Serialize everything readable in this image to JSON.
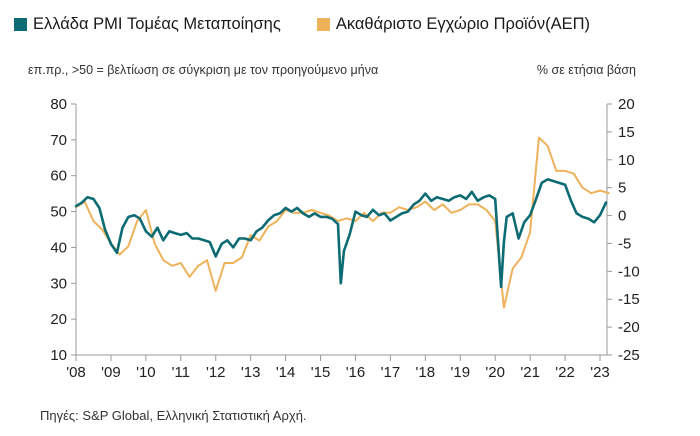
{
  "legend": {
    "pmi_label": "Ελλάδα PMI Τομέας Μεταποίησης",
    "gdp_label": "Ακαθάριστο Εγχώριο Προϊόν(ΑΕΠ)"
  },
  "notes": {
    "left_axis_note": "επ.πρ., >50 = βελτίωση σε σύγκριση με τον προηγούμενο μήνα",
    "right_axis_note": "% σε ετήσια βάση"
  },
  "source": "Πηγές: S&P Global, Ελληνική Στατιστική Αρχή.",
  "chart_data": {
    "type": "line",
    "colors": {
      "pmi": "#0d6b73",
      "gdp": "#eeb25b",
      "axis": "#9a9a9a"
    },
    "grid": false,
    "legend_position": "top",
    "x_ticks": [
      "'08",
      "'09",
      "'10",
      "'11",
      "'12",
      "'13",
      "'14",
      "'15",
      "'16",
      "'17",
      "'18",
      "'19",
      "'20",
      "'21",
      "'22",
      "'23"
    ],
    "y_left": {
      "range": [
        10,
        80
      ],
      "ticks": [
        "80",
        "70",
        "60",
        "50",
        "40",
        "30",
        "20",
        "10"
      ]
    },
    "y_right": {
      "range": [
        -25,
        20
      ],
      "ticks": [
        "20",
        "15",
        "10",
        "5",
        "0",
        "-5",
        "-10",
        "-15",
        "-20",
        "-25"
      ]
    },
    "series": [
      {
        "name": "Ελλάδα PMI Τομέας Μεταποίησης",
        "axis": "left",
        "x": [
          2008.0,
          2008.17,
          2008.33,
          2008.5,
          2008.67,
          2008.83,
          2009.0,
          2009.17,
          2009.33,
          2009.5,
          2009.67,
          2009.83,
          2010.0,
          2010.17,
          2010.33,
          2010.5,
          2010.67,
          2010.83,
          2011.0,
          2011.17,
          2011.33,
          2011.5,
          2011.67,
          2011.83,
          2012.0,
          2012.17,
          2012.33,
          2012.5,
          2012.67,
          2012.83,
          2013.0,
          2013.17,
          2013.33,
          2013.5,
          2013.67,
          2013.83,
          2014.0,
          2014.17,
          2014.33,
          2014.5,
          2014.67,
          2014.83,
          2015.0,
          2015.17,
          2015.33,
          2015.5,
          2015.58,
          2015.67,
          2015.83,
          2016.0,
          2016.17,
          2016.33,
          2016.5,
          2016.67,
          2016.83,
          2017.0,
          2017.17,
          2017.33,
          2017.5,
          2017.67,
          2017.83,
          2018.0,
          2018.17,
          2018.33,
          2018.5,
          2018.67,
          2018.83,
          2019.0,
          2019.17,
          2019.33,
          2019.5,
          2019.67,
          2019.83,
          2020.0,
          2020.17,
          2020.25,
          2020.33,
          2020.5,
          2020.67,
          2020.83,
          2021.0,
          2021.17,
          2021.33,
          2021.5,
          2021.67,
          2021.83,
          2022.0,
          2022.17,
          2022.33,
          2022.5,
          2022.67,
          2022.83,
          2023.0,
          2023.17
        ],
        "values": [
          51.5,
          52.5,
          54.0,
          53.5,
          51.0,
          45.0,
          41.0,
          38.5,
          45.5,
          48.5,
          49.0,
          48.0,
          44.5,
          43.0,
          45.5,
          42.0,
          44.5,
          44.0,
          43.5,
          44.0,
          42.5,
          42.5,
          42.0,
          41.5,
          37.5,
          41.0,
          42.0,
          40.0,
          42.5,
          42.5,
          42.0,
          44.5,
          45.5,
          47.5,
          49.0,
          49.5,
          51.0,
          50.0,
          51.0,
          49.5,
          48.5,
          49.5,
          48.5,
          48.5,
          48.0,
          46.5,
          30.0,
          39.0,
          43.5,
          50.0,
          49.0,
          48.5,
          50.5,
          49.0,
          49.5,
          47.5,
          48.5,
          49.5,
          50.0,
          52.0,
          53.0,
          55.0,
          53.0,
          54.0,
          53.5,
          53.0,
          54.0,
          54.5,
          53.5,
          55.5,
          53.0,
          54.0,
          54.5,
          53.5,
          29.0,
          41.5,
          48.5,
          49.5,
          42.5,
          47.0,
          49.0,
          53.5,
          58.0,
          59.0,
          58.5,
          58.0,
          57.5,
          53.0,
          49.5,
          48.5,
          48.0,
          47.0,
          49.0,
          52.5
        ]
      },
      {
        "name": "Ακαθάριστο Εγχώριο Προϊόν(ΑΕΠ)",
        "axis": "right",
        "x": [
          2008.0,
          2008.25,
          2008.5,
          2008.75,
          2009.0,
          2009.25,
          2009.5,
          2009.75,
          2010.0,
          2010.25,
          2010.5,
          2010.75,
          2011.0,
          2011.25,
          2011.5,
          2011.75,
          2012.0,
          2012.25,
          2012.5,
          2012.75,
          2013.0,
          2013.25,
          2013.5,
          2013.75,
          2014.0,
          2014.25,
          2014.5,
          2014.75,
          2015.0,
          2015.25,
          2015.5,
          2015.75,
          2016.0,
          2016.25,
          2016.5,
          2016.75,
          2017.0,
          2017.25,
          2017.5,
          2017.75,
          2018.0,
          2018.25,
          2018.5,
          2018.75,
          2019.0,
          2019.25,
          2019.5,
          2019.75,
          2020.0,
          2020.25,
          2020.5,
          2020.75,
          2021.0,
          2021.25,
          2021.5,
          2021.75,
          2022.0,
          2022.25,
          2022.5,
          2022.75,
          2023.0,
          2023.25
        ],
        "values": [
          1.5,
          2.5,
          -1.0,
          -2.5,
          -5.0,
          -7.0,
          -5.5,
          -1.0,
          1.0,
          -5.0,
          -8.0,
          -9.0,
          -8.5,
          -11.0,
          -9.0,
          -8.0,
          -13.5,
          -8.5,
          -8.5,
          -7.5,
          -3.5,
          -4.5,
          -2.0,
          -1.0,
          1.0,
          0.5,
          0.5,
          1.0,
          0.5,
          0.0,
          -1.0,
          -0.5,
          -1.0,
          0.5,
          -1.0,
          0.5,
          0.5,
          1.5,
          1.0,
          1.5,
          2.5,
          1.0,
          2.0,
          0.5,
          1.0,
          2.0,
          2.0,
          1.0,
          -1.0,
          -16.5,
          -9.5,
          -7.5,
          -3.0,
          14.0,
          12.5,
          8.0,
          8.0,
          7.5,
          5.0,
          4.0,
          4.5,
          4.0
        ]
      }
    ]
  }
}
